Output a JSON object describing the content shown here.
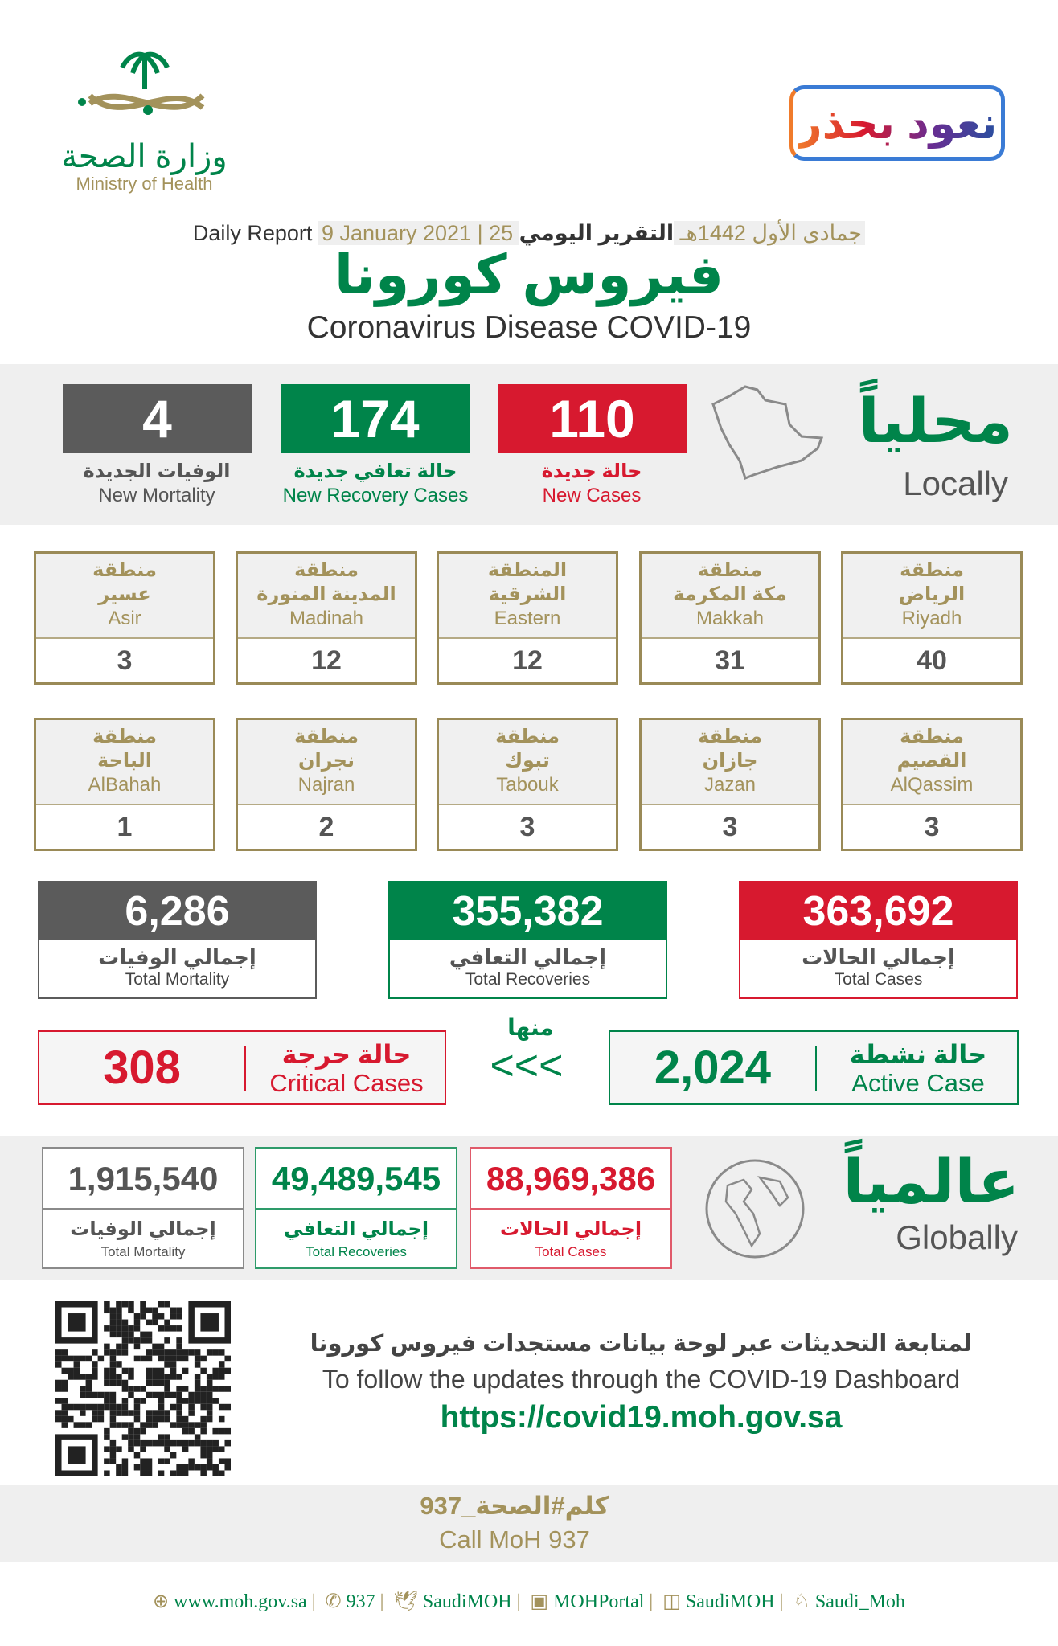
{
  "logo": {
    "arabic": "وزارة الصحة",
    "english": "Ministry of Health"
  },
  "campaign": {
    "text": "نعود بحذر"
  },
  "header": {
    "report_en": "Daily Report",
    "date_en": "9 January 2021",
    "date_hijri": "25 جمادى الأول 1442هـ",
    "report_ar": "التقرير اليومي",
    "title_ar": "فيروس كورونا",
    "title_en": "Coronavirus Disease COVID-19"
  },
  "local": {
    "title_ar": "محلياً",
    "title_en": "Locally",
    "new_cases": {
      "value": "110",
      "ar": "حالة جديدة",
      "en": "New Cases"
    },
    "new_recovery": {
      "value": "174",
      "ar": "حالة تعافي جديدة",
      "en": "New Recovery Cases"
    },
    "new_mortality": {
      "value": "4",
      "ar": "الوفيات الجديدة",
      "en": "New Mortality"
    }
  },
  "regions": [
    {
      "ar1": "منطقة",
      "ar2": "الرياض",
      "en": "Riyadh",
      "value": "40"
    },
    {
      "ar1": "منطقة",
      "ar2": "مكة المكرمة",
      "en": "Makkah",
      "value": "31"
    },
    {
      "ar1": "المنطقة",
      "ar2": "الشرقية",
      "en": "Eastern",
      "value": "12"
    },
    {
      "ar1": "منطقة",
      "ar2": "المدينة المنورة",
      "en": "Madinah",
      "value": "12"
    },
    {
      "ar1": "منطقة",
      "ar2": "عسير",
      "en": "Asir",
      "value": "3"
    },
    {
      "ar1": "منطقة",
      "ar2": "القصيم",
      "en": "AlQassim",
      "value": "3"
    },
    {
      "ar1": "منطقة",
      "ar2": "جازان",
      "en": "Jazan",
      "value": "3"
    },
    {
      "ar1": "منطقة",
      "ar2": "تبوك",
      "en": "Tabouk",
      "value": "3"
    },
    {
      "ar1": "منطقة",
      "ar2": "نجران",
      "en": "Najran",
      "value": "2"
    },
    {
      "ar1": "منطقة",
      "ar2": "الباحة",
      "en": "AlBahah",
      "value": "1"
    }
  ],
  "totals": {
    "cases": {
      "value": "363,692",
      "ar": "إجمالي الحالات",
      "en": "Total Cases"
    },
    "recoveries": {
      "value": "355,382",
      "ar": "إجمالي التعافي",
      "en": "Total Recoveries"
    },
    "mortality": {
      "value": "6,286",
      "ar": "إجمالي الوفيات",
      "en": "Total Mortality"
    }
  },
  "active": {
    "value": "2,024",
    "ar": "حالة نشطة",
    "en": "Active Case"
  },
  "of_which": {
    "ar": "منها",
    "arrows": "<<<"
  },
  "critical": {
    "value": "308",
    "ar": "حالة حرجة",
    "en": "Critical Cases"
  },
  "global": {
    "title_ar": "عالمياً",
    "title_en": "Globally",
    "cases": {
      "value": "88,969,386",
      "ar": "إجمالي الحالات",
      "en": "Total Cases"
    },
    "recoveries": {
      "value": "49,489,545",
      "ar": "إجمالي التعافي",
      "en": "Total Recoveries"
    },
    "mortality": {
      "value": "1,915,540",
      "ar": "إجمالي الوفيات",
      "en": "Total Mortality"
    }
  },
  "dashboard": {
    "ar": "لمتابعة التحديثات عبر لوحة بيانات مستجدات فيروس كورونا",
    "en": "To follow the updates through the COVID-19 Dashboard",
    "url": "https://covid19.moh.gov.sa"
  },
  "call": {
    "ar": "كلم#الصحة_937",
    "en": "Call MoH 937"
  },
  "footer": [
    {
      "icon": "globe-icon",
      "text": "www.moh.gov.sa"
    },
    {
      "icon": "phone-icon",
      "text": "937"
    },
    {
      "icon": "twitter-icon",
      "text": "SaudiMOH"
    },
    {
      "icon": "youtube-icon",
      "text": "MOHPortal"
    },
    {
      "icon": "facebook-icon",
      "text": "SaudiMOH"
    },
    {
      "icon": "snapchat-icon",
      "text": "Saudi_Moh"
    }
  ],
  "colors": {
    "green": "#00844a",
    "red": "#d7192f",
    "gray": "#5b5b5b",
    "gold": "#a3925b"
  }
}
